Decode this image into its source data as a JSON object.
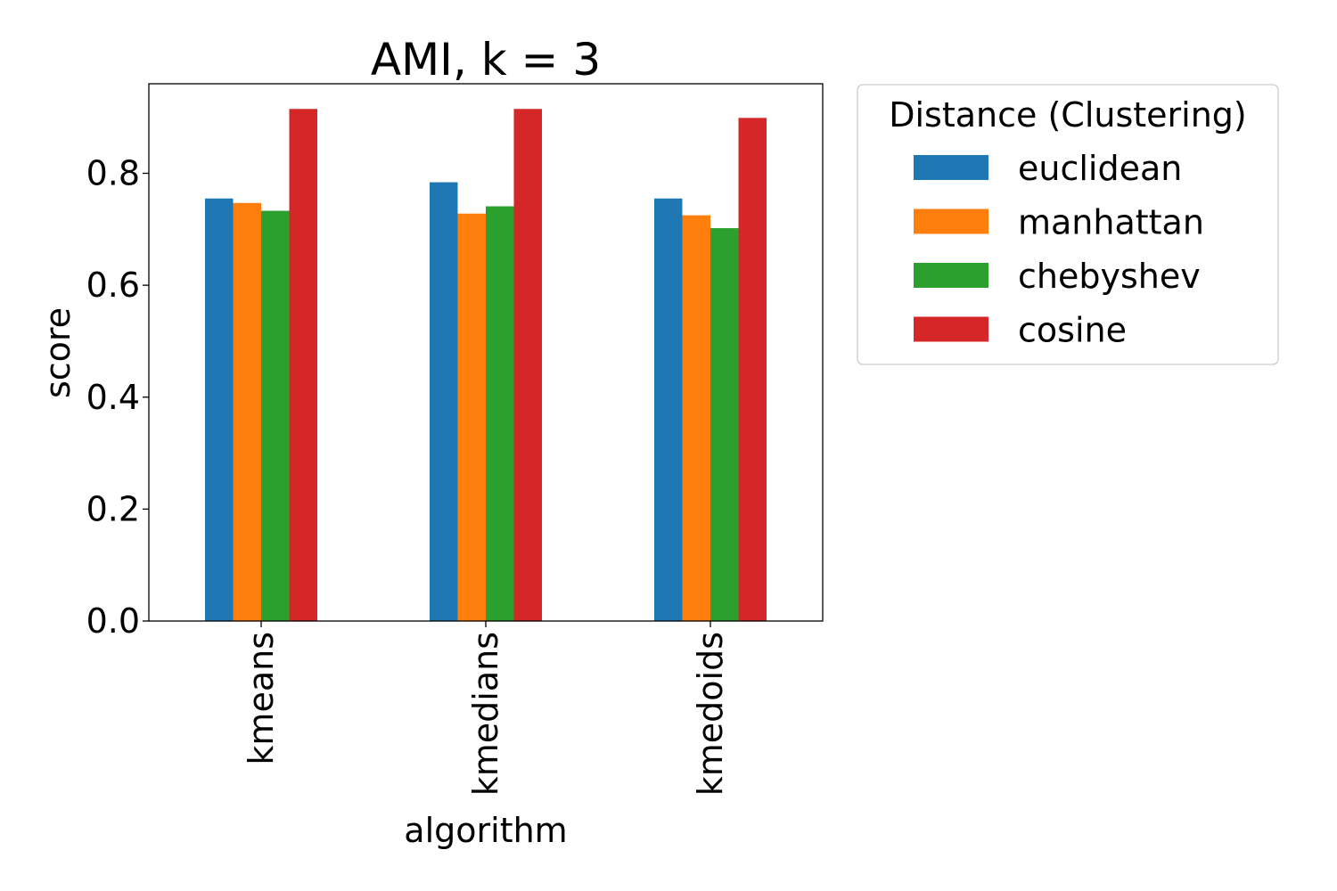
{
  "chart_data": {
    "type": "bar",
    "title": "AMI, k = 3",
    "xlabel": "algorithm",
    "ylabel": "score",
    "categories": [
      "kmeans",
      "kmedians",
      "kmedoids"
    ],
    "ylim": [
      0,
      0.96
    ],
    "yticks": [
      "0.0",
      "0.2",
      "0.4",
      "0.6",
      "0.8"
    ],
    "grid": false,
    "legend": {
      "title": "Distance (Clustering)",
      "placement": "outside-upper-right"
    },
    "series": [
      {
        "name": "euclidean",
        "color": "#1f77b4",
        "values": [
          0.755,
          0.784,
          0.755
        ]
      },
      {
        "name": "manhattan",
        "color": "#ff7f0e",
        "values": [
          0.747,
          0.728,
          0.725
        ]
      },
      {
        "name": "chebyshev",
        "color": "#2ca02c",
        "values": [
          0.733,
          0.741,
          0.702
        ]
      },
      {
        "name": "cosine",
        "color": "#d62728",
        "values": [
          0.915,
          0.915,
          0.899
        ]
      }
    ]
  }
}
